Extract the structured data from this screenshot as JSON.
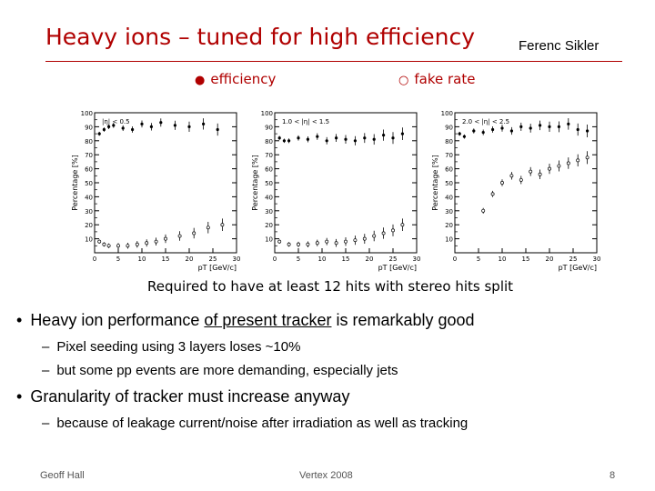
{
  "slide": {
    "title": "Heavy ions – tuned for high efficiency",
    "author": "Ferenc Sikler",
    "legend": {
      "efficiency": "efficiency",
      "fake_rate": "fake rate"
    },
    "caption": "Required to have at least 12 hits with stereo hits split",
    "bullets": [
      {
        "pre": "Heavy ion performance ",
        "underlined": "of present tracker",
        "post": " is remarkably good",
        "subs": [
          "Pixel seeding using 3 layers loses ~10%",
          "but some pp events are more demanding, especially jets"
        ]
      },
      {
        "text": "Granularity of tracker must increase anyway",
        "subs": [
          "because of leakage current/noise after irradiation as well as tracking"
        ]
      }
    ],
    "footer": {
      "left": "Geoff Hall",
      "center": "Vertex 2008",
      "page": "8"
    }
  },
  "chart_data": [
    {
      "type": "scatter",
      "title": "|η| < 0.5",
      "xlabel": "pT [GeV/c]",
      "ylabel": "Percentage [%]",
      "xlim": [
        0,
        30
      ],
      "ylim": [
        0,
        100
      ],
      "xticks": [
        0,
        5,
        10,
        15,
        20,
        25,
        30
      ],
      "yticks": [
        10,
        20,
        30,
        40,
        50,
        60,
        70,
        80,
        90,
        100
      ],
      "series": [
        {
          "name": "efficiency",
          "marker": "filled",
          "x": [
            1,
            2,
            3,
            4,
            6,
            8,
            10,
            12,
            14,
            17,
            20,
            23,
            26
          ],
          "y": [
            85,
            88,
            90,
            91,
            89,
            88,
            92,
            90,
            93,
            91,
            90,
            92,
            88
          ]
        },
        {
          "name": "fake rate",
          "marker": "open",
          "x": [
            1,
            2,
            3,
            5,
            7,
            9,
            11,
            13,
            15,
            18,
            21,
            24,
            27
          ],
          "y": [
            8,
            6,
            5,
            5,
            5,
            6,
            7,
            8,
            10,
            12,
            14,
            18,
            20
          ]
        }
      ]
    },
    {
      "type": "scatter",
      "title": "1.0 < |η| < 1.5",
      "xlabel": "pT [GeV/c]",
      "ylabel": "Percentage [%]",
      "xlim": [
        0,
        30
      ],
      "ylim": [
        0,
        100
      ],
      "xticks": [
        0,
        5,
        10,
        15,
        20,
        25,
        30
      ],
      "yticks": [
        10,
        20,
        30,
        40,
        50,
        60,
        70,
        80,
        90,
        100
      ],
      "series": [
        {
          "name": "efficiency",
          "marker": "filled",
          "x": [
            1,
            2,
            3,
            5,
            7,
            9,
            11,
            13,
            15,
            17,
            19,
            21,
            23,
            25,
            27
          ],
          "y": [
            82,
            80,
            80,
            82,
            81,
            83,
            80,
            82,
            81,
            80,
            82,
            81,
            84,
            82,
            85
          ]
        },
        {
          "name": "fake rate",
          "marker": "open",
          "x": [
            1,
            3,
            5,
            7,
            9,
            11,
            13,
            15,
            17,
            19,
            21,
            23,
            25,
            27
          ],
          "y": [
            8,
            6,
            6,
            6,
            7,
            8,
            7,
            8,
            9,
            10,
            12,
            14,
            16,
            20
          ]
        }
      ]
    },
    {
      "type": "scatter",
      "title": "2.0 < |η| < 2.5",
      "xlabel": "pT [GeV/c]",
      "ylabel": "Percentage [%]",
      "xlim": [
        0,
        30
      ],
      "ylim": [
        0,
        100
      ],
      "xticks": [
        0,
        5,
        10,
        15,
        20,
        25,
        30
      ],
      "yticks": [
        10,
        20,
        30,
        40,
        50,
        60,
        70,
        80,
        90,
        100
      ],
      "series": [
        {
          "name": "efficiency",
          "marker": "filled",
          "x": [
            1,
            2,
            4,
            6,
            8,
            10,
            12,
            14,
            16,
            18,
            20,
            22,
            24,
            26,
            28
          ],
          "y": [
            85,
            83,
            87,
            86,
            88,
            89,
            87,
            90,
            89,
            91,
            90,
            90,
            92,
            88,
            87
          ]
        },
        {
          "name": "fake rate",
          "marker": "open",
          "x": [
            6,
            8,
            10,
            12,
            14,
            16,
            18,
            20,
            22,
            24,
            26,
            28
          ],
          "y": [
            30,
            42,
            50,
            55,
            52,
            58,
            56,
            60,
            62,
            64,
            66,
            68
          ]
        }
      ]
    }
  ]
}
